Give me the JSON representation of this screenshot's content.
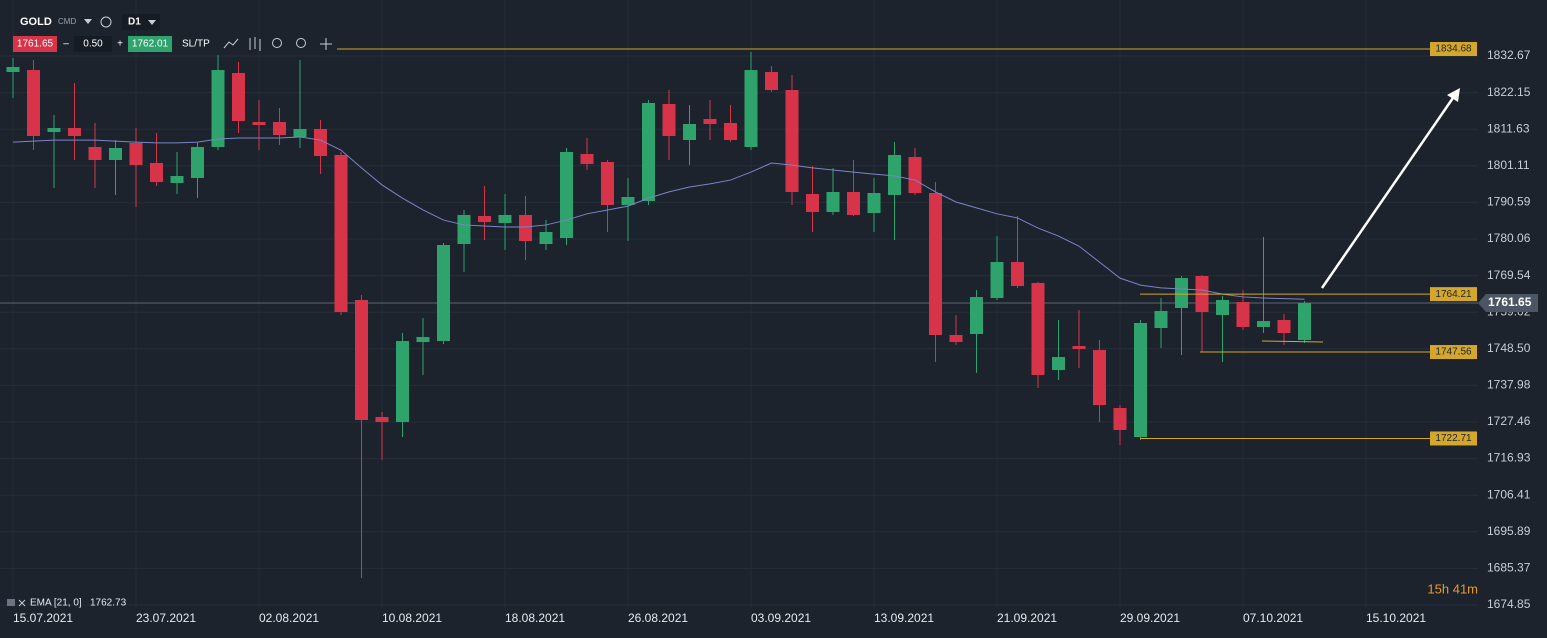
{
  "toolbar": {
    "symbol": "GOLD",
    "market": "CMD",
    "timeframe": "D1",
    "minus": "–",
    "spread": "0.50",
    "plus": "+",
    "ask": "1762.01",
    "sltp": "SL/TP"
  },
  "chart_data": {
    "type": "candlestick",
    "categories": [
      "15.07.2021",
      null,
      null,
      null,
      null,
      null,
      "23.07.2021",
      null,
      null,
      null,
      null,
      null,
      "02.08.2021",
      null,
      null,
      null,
      null,
      null,
      "10.08.2021",
      null,
      null,
      null,
      null,
      null,
      "18.08.2021",
      null,
      null,
      null,
      null,
      null,
      "26.08.2021",
      null,
      null,
      null,
      null,
      null,
      "03.09.2021",
      null,
      null,
      null,
      null,
      null,
      "13.09.2021",
      null,
      null,
      null,
      null,
      null,
      "21.09.2021",
      null,
      null,
      null,
      null,
      null,
      "29.09.2021",
      null,
      null,
      null,
      null,
      null,
      "07.10.2021",
      null,
      null,
      null,
      null,
      null,
      "15.10.2021"
    ],
    "open": [
      1828.07,
      1828.64,
      1810.82,
      1811.97,
      1806.51,
      1802.77,
      1807.66,
      1801.91,
      1796.16,
      1797.59,
      1806.51,
      1827.78,
      1813.69,
      1813.69,
      1809.38,
      1811.68,
      1804.21,
      1762.52,
      1728.88,
      1727.44,
      1750.44,
      1750.73,
      1778.62,
      1786.67,
      1784.66,
      1786.96,
      1778.62,
      1780.34,
      1804.49,
      1802.19,
      1789.83,
      1790.98,
      1818.87,
      1808.52,
      1814.56,
      1813.41,
      1806.51,
      1828.07,
      1822.89,
      1792.99,
      1787.82,
      1793.57,
      1787.53,
      1792.71,
      1803.63,
      1793.28,
      1752.46,
      1752.74,
      1763.09,
      1773.44,
      1767.41,
      1742.39,
      1749.29,
      1748.14,
      1731.47,
      1723.13,
      1754.47,
      1760.22,
      1769.42,
      1758.21,
      1761.94,
      1754.76,
      1756.77,
      1751.02,
      null,
      null,
      null
    ],
    "high": [
      1832.09,
      1831.52,
      1815.71,
      1824.91,
      1813.41,
      1808.52,
      1811.97,
      1810.53,
      1805.07,
      1807.94,
      1832.96,
      1830.94,
      1820.02,
      1817.72,
      1831.52,
      1814.27,
      1805.07,
      1763.96,
      1730.32,
      1753.03,
      1757.34,
      1778.91,
      1788.39,
      1795.29,
      1792.99,
      1792.42,
      1785.52,
      1806.22,
      1809.09,
      1802.77,
      1797.59,
      1820.02,
      1822.89,
      1818.58,
      1820.02,
      1818.58,
      1833.82,
      1829.79,
      1827.21,
      1801.04,
      1800.47,
      1802.77,
      1797.59,
      1807.94,
      1806.22,
      1796.44,
      1758.21,
      1765.39,
      1780.92,
      1786.67,
      1767.69,
      1756.77,
      1759.64,
      1751.02,
      1732.33,
      1756.77,
      1763.09,
      1769.42,
      1769.71,
      1763.67,
      1765.39,
      1780.63,
      1758.49,
      1762.2,
      null,
      null,
      null
    ],
    "low": [
      1820.59,
      1805.64,
      1794.72,
      1802.77,
      1794.72,
      1792.71,
      1789.26,
      1795.29,
      1792.99,
      1791.84,
      1805.64,
      1810.53,
      1805.64,
      1807.08,
      1806.22,
      1798.74,
      1758.21,
      1682.59,
      1716.52,
      1723.13,
      1740.96,
      1749.87,
      1770.57,
      1779.77,
      1776.89,
      1774.02,
      1776.89,
      1778.33,
      1799.89,
      1782.07,
      1779.48,
      1789.83,
      1802.77,
      1801.33,
      1808.52,
      1807.94,
      1805.64,
      1822.32,
      1789.83,
      1782.07,
      1786.96,
      1786.67,
      1782.07,
      1779.77,
      1792.71,
      1744.69,
      1749.58,
      1741.53,
      1762.52,
      1765.97,
      1737.22,
      1739.52,
      1742.97,
      1727.44,
      1720.83,
      1722.27,
      1748.72,
      1746.71,
      1747.57,
      1744.69,
      1753.89,
      1753.03,
      1749.58,
      1750.16,
      null,
      null,
      null
    ],
    "close": [
      1829.51,
      1809.67,
      1811.97,
      1809.67,
      1802.77,
      1806.22,
      1801.33,
      1796.44,
      1798.17,
      1806.51,
      1828.64,
      1813.98,
      1812.83,
      1809.96,
      1811.68,
      1803.92,
      1759.07,
      1728.02,
      1727.44,
      1750.73,
      1751.88,
      1778.33,
      1786.96,
      1784.94,
      1786.96,
      1779.48,
      1782.07,
      1805.07,
      1801.62,
      1789.83,
      1792.13,
      1819.16,
      1809.67,
      1813.12,
      1813.12,
      1808.52,
      1828.64,
      1822.89,
      1793.57,
      1787.82,
      1793.57,
      1786.96,
      1793.28,
      1804.21,
      1793.28,
      1752.46,
      1750.44,
      1763.38,
      1773.44,
      1766.54,
      1740.96,
      1746.13,
      1748.43,
      1732.33,
      1725.14,
      1755.91,
      1759.36,
      1768.84,
      1759.07,
      1762.52,
      1754.76,
      1756.48,
      1753.03,
      1761.65,
      null,
      null,
      null
    ],
    "up_color": "#2ea36b",
    "down_color": "#d7344a",
    "series": [
      {
        "name": "EMA [21, 0]",
        "color": "#7c84c8",
        "values": [
          1807.9,
          1808.2,
          1808.5,
          1808.5,
          1808.5,
          1808.2,
          1807.9,
          1807.7,
          1807.7,
          1807.9,
          1808.8,
          1809.1,
          1809.1,
          1809.1,
          1809.4,
          1808.5,
          1805.6,
          1800.5,
          1795.6,
          1791.8,
          1788.4,
          1785.5,
          1784.1,
          1783.8,
          1783.5,
          1783.5,
          1784.1,
          1785.5,
          1787.3,
          1788.4,
          1789.5,
          1791.8,
          1793.6,
          1795.0,
          1795.9,
          1797.0,
          1799.3,
          1801.9,
          1801.3,
          1800.5,
          1799.9,
          1799.3,
          1798.7,
          1798.2,
          1797.0,
          1793.6,
          1790.7,
          1789.0,
          1787.3,
          1786.1,
          1783.2,
          1780.9,
          1778.0,
          1773.4,
          1768.8,
          1766.8,
          1766.0,
          1765.7,
          1765.4,
          1764.2,
          1763.4,
          1763.1,
          1762.9,
          1762.73,
          null,
          null,
          null
        ]
      }
    ],
    "ylim": [
      1673.97,
      1848.77
    ],
    "yticks": [
      1832.67,
      1822.15,
      1811.63,
      1801.11,
      1790.59,
      1780.06,
      1769.54,
      1759.02,
      {
        "value": 1748.5,
        "label": "1748.50"
      },
      1737.98,
      1727.46,
      1716.93,
      1706.41,
      1695.89,
      1685.37,
      1674.85
    ],
    "grid": true,
    "levels": [
      1834.68,
      1764.21,
      1747.56,
      1722.71
    ],
    "level_color": "#d4a72c",
    "last_price": 1761.65,
    "countdown": "15h 41m"
  }
}
